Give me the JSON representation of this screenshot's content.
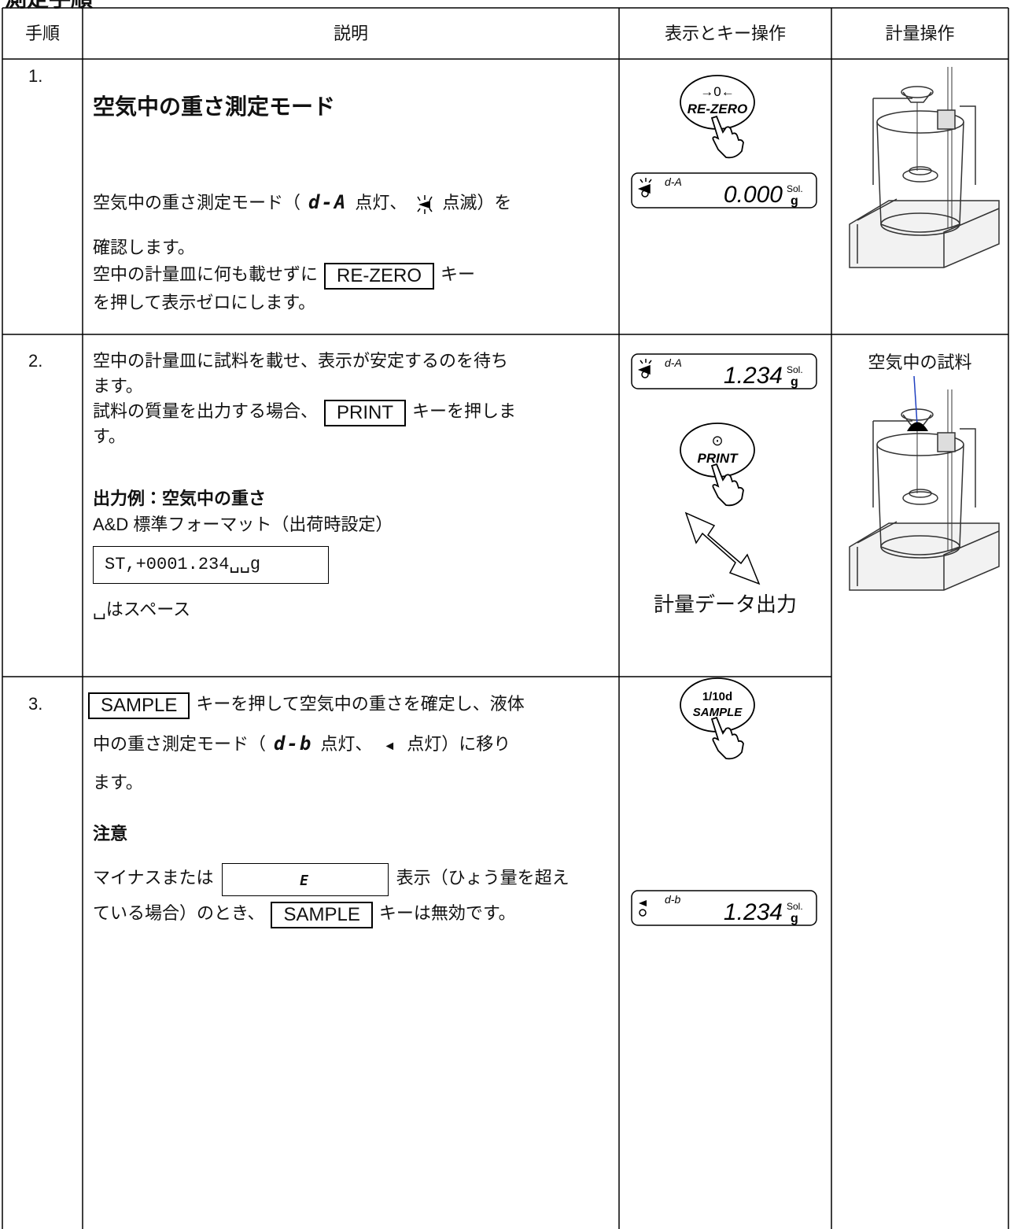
{
  "title": "測定手順",
  "table": {
    "headers": [
      "手順",
      "説明",
      "表示とキー操作",
      "計量操作"
    ],
    "rows": [
      {
        "step": "1.",
        "heading": "空気中の重さ測定モード",
        "lines": [
          [
            "空気中の重さ測定モード（",
            "d-A",
            "点灯、",
            "点滅）を"
          ],
          [
            "確認します。"
          ],
          [
            "空中の計量皿に何も載せずに",
            "RE-ZERO",
            "キー"
          ],
          [
            "を押して表示ゼロにします。"
          ]
        ],
        "key": [
          "→0←",
          "RE-ZERO"
        ],
        "display": [
          "d-A",
          "0.000",
          "Sol.",
          "g"
        ]
      },
      {
        "step": "2.",
        "lines": [
          [
            "空中の計量皿に試料を載せ、表示が安定するのを待ち"
          ],
          [
            "ます。"
          ],
          [
            "試料の質量を出力する場合、",
            "PRINT",
            "キーを押しま"
          ],
          [
            "す。"
          ]
        ],
        "output_heading": "出力例：空気中の重さ",
        "output_format": "A&D 標準フォーマット（出荷時設定）",
        "output_example": "ST,+0001.234␣␣g",
        "note": "␣はスペース",
        "display": [
          "d-A",
          "1.234",
          "Sol.",
          "g"
        ],
        "key": [
          "⊙",
          "PRINT"
        ],
        "output_label": "計量データ出力",
        "illustration_label": "空気中の試料"
      },
      {
        "step": "3.",
        "lines": [
          [
            "SAMPLE",
            "キーを押して空気中の重さを確定し、液体"
          ],
          [
            "中の重さ測定モード（",
            "d-b",
            "点灯、",
            "◄",
            "点灯）に移り"
          ],
          [
            "ます。"
          ]
        ],
        "caution_heading": "注意",
        "caution_lines": [
          [
            "マイナスまたは",
            "E",
            "表示（ひょう量を超え"
          ],
          [
            "ている場合）のとき、",
            "SAMPLE",
            "キーは無効です。"
          ]
        ],
        "key": [
          "1/10d",
          "SAMPLE"
        ],
        "display": [
          "d-b",
          "1.234",
          "Sol.",
          "g"
        ]
      }
    ]
  }
}
